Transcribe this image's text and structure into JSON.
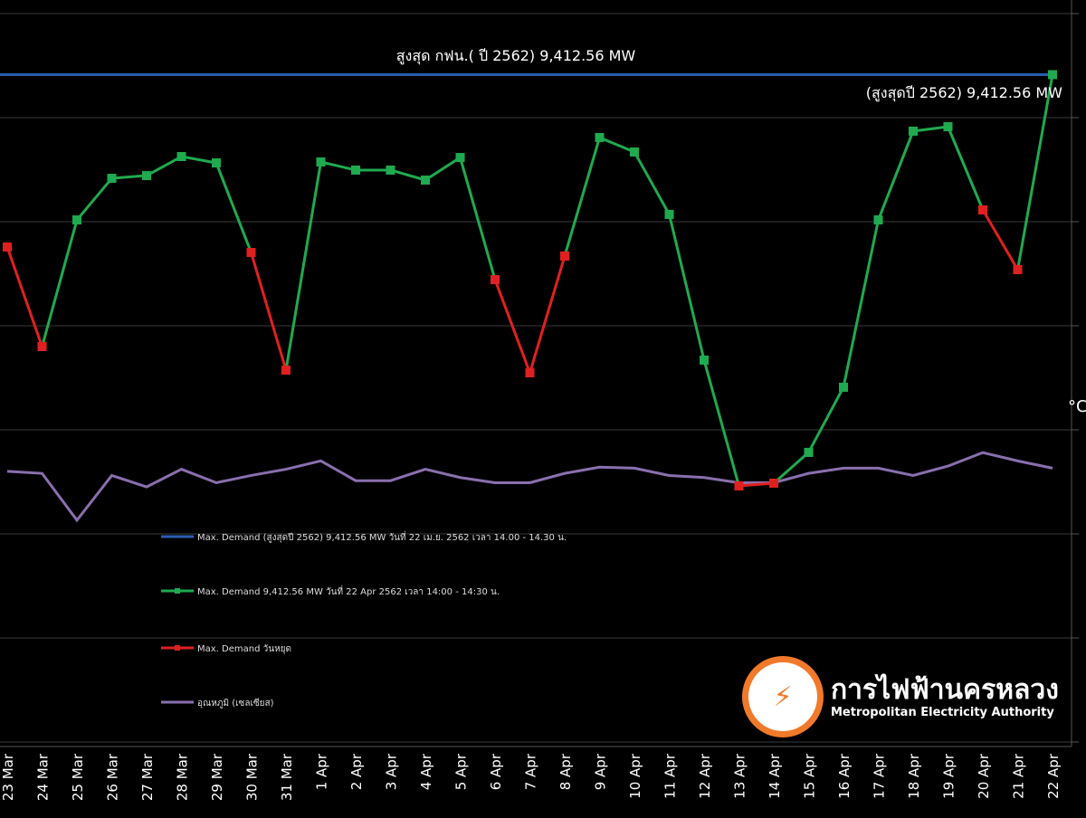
{
  "chart_data": {
    "type": "line",
    "title": "",
    "categories": [
      "23 Mar",
      "24 Mar",
      "25 Mar",
      "26 Mar",
      "27 Mar",
      "28 Mar",
      "29 Mar",
      "30 Mar",
      "31 Mar",
      "1 Apr",
      "2 Apr",
      "3 Apr",
      "4 Apr",
      "5 Apr",
      "6 Apr",
      "7 Apr",
      "8 Apr",
      "9 Apr",
      "10 Apr",
      "11 Apr",
      "12 Apr",
      "13 Apr",
      "14 Apr",
      "15 Apr",
      "16 Apr",
      "17 Apr",
      "18 Apr",
      "19 Apr",
      "20 Apr",
      "21 Apr",
      "22 Apr"
    ],
    "ylim": [
      3000,
      10000
    ],
    "y2lim": [
      10,
      50
    ],
    "y2label": "°C",
    "grid": true,
    "series": [
      {
        "name": "Max. Demand (สูงสุดปี 2562) 9,412.56 MW วันที่ 22 เม.ย. 2562  เวลา 14.00 - 14.30 น.",
        "type": "hline",
        "value": 9412.56,
        "color": "#2a5db0"
      },
      {
        "name": "Max. Demand 9,412.56 MW วันที่ 22 Apr 2562 เวลา 14:00 - 14:30 น.",
        "color": "#1faa4f",
        "values": [
          7757,
          6800,
          8017,
          8417,
          8443,
          8626,
          8565,
          7704,
          6574,
          8574,
          8496,
          8496,
          8400,
          8617,
          7443,
          6548,
          7670,
          8809,
          8670,
          8070,
          6670,
          5461,
          5487,
          5783,
          6409,
          8017,
          8870,
          8913,
          8113,
          7539,
          9413
        ],
        "holiday": [
          true,
          true,
          false,
          false,
          false,
          false,
          false,
          true,
          true,
          false,
          false,
          false,
          false,
          false,
          true,
          true,
          true,
          false,
          false,
          false,
          false,
          true,
          true,
          false,
          false,
          false,
          false,
          false,
          true,
          true,
          false
        ]
      },
      {
        "name": "Max. Demand วันหยุด",
        "color": "#e02020"
      },
      {
        "name": "อุณหภูมิ (เซลเซียส)",
        "color": "#8a6fae",
        "axis": "right",
        "values": [
          36.1,
          35.9,
          31.4,
          35.7,
          34.6,
          36.3,
          35.0,
          35.7,
          36.3,
          37.1,
          35.2,
          35.2,
          36.3,
          35.5,
          35.0,
          35.0,
          35.9,
          36.5,
          36.4,
          35.7,
          35.5,
          35.0,
          35.0,
          35.9,
          36.4,
          36.4,
          35.7,
          36.6,
          37.9,
          37.1,
          36.4
        ]
      }
    ],
    "annotations": {
      "top_line": "สูงสุด กฟน.( ปี 2562) 9,412.56 MW",
      "peak": "(สูงสุดปี 2562) 9,412.56 MW"
    }
  },
  "logo": {
    "thai": "การไฟฟ้านครหลวง",
    "english": "Metropolitan Electricity Authority"
  }
}
